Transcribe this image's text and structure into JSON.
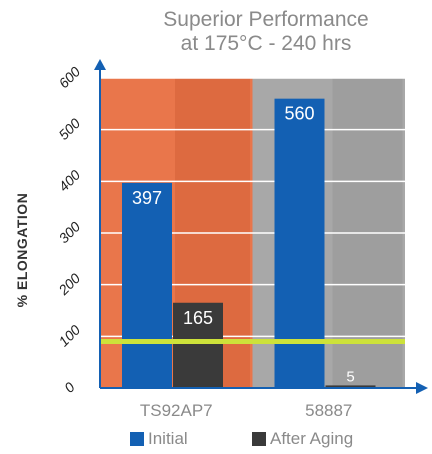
{
  "chart_data": {
    "type": "bar",
    "title": "Superior Performance",
    "subtitle": "at 175°C - 240 hrs",
    "ylabel": "% ELONGATION",
    "xlabel": "",
    "categories": [
      "TS92AP7",
      "58887"
    ],
    "series": [
      {
        "name": "Initial",
        "values": [
          397,
          560
        ],
        "color": "#1360b3"
      },
      {
        "name": "After Aging",
        "values": [
          165,
          5
        ],
        "color": "#3a3a3a"
      }
    ],
    "ylim": [
      0,
      600
    ],
    "yticks": [
      "0",
      "100",
      "200",
      "300",
      "400",
      "500",
      "600"
    ],
    "reference_line": {
      "value": 90,
      "color": "#cde23a"
    },
    "grid": true,
    "legend_position": "bottom",
    "background_colors": [
      "#e9764b",
      "#a8a8a8"
    ]
  }
}
